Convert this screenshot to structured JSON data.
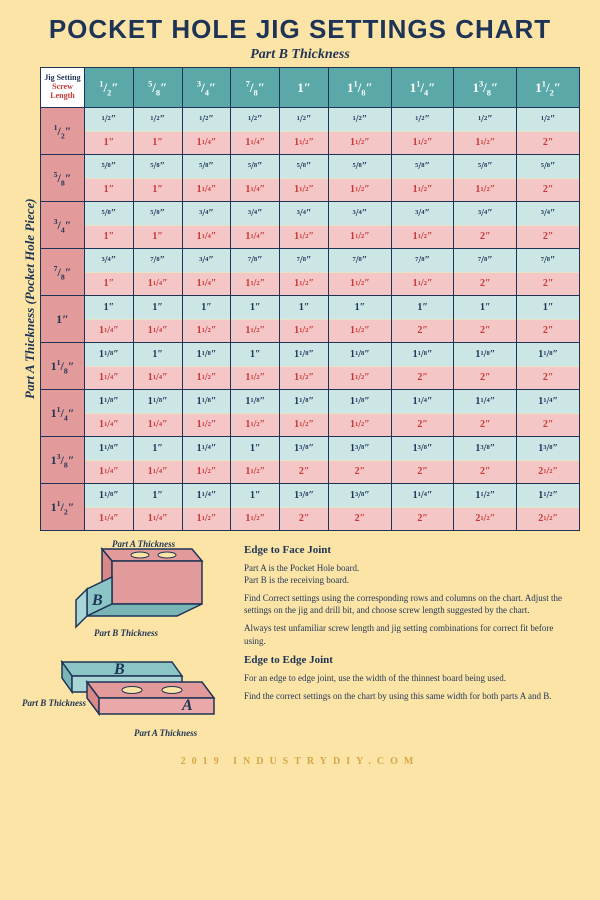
{
  "title": "POCKET HOLE JIG SETTINGS CHART",
  "subtitle": "Part B Thickness",
  "side_label": "Part A Thickness (Pocket Hole Piece)",
  "corner": {
    "jig": "Jig Setting",
    "screw": "Screw Length"
  },
  "col_headers": [
    "1/2\"",
    "5/8\"",
    "3/4\"",
    "7/8\"",
    "1\"",
    "1 1/8\"",
    "1 1/4\"",
    "1 3/8\"",
    "1 1/2\""
  ],
  "row_headers": [
    "1/2\"",
    "5/8\"",
    "3/4\"",
    "7/8\"",
    "1\"",
    "1 1/8\"",
    "1 1/4\"",
    "1 3/8\"",
    "1 1/2\""
  ],
  "cells": [
    [
      [
        "1/2\"",
        "1\""
      ],
      [
        "1/2\"",
        "1\""
      ],
      [
        "1/2\"",
        "1 1/4\""
      ],
      [
        "1/2\"",
        "1 1/4\""
      ],
      [
        "1/2\"",
        "1 1/2\""
      ],
      [
        "1/2\"",
        "1 1/2\""
      ],
      [
        "1/2\"",
        "1 1/2\""
      ],
      [
        "1/2\"",
        "1 1/2\""
      ],
      [
        "1/2\"",
        "2\""
      ]
    ],
    [
      [
        "5/8\"",
        "1\""
      ],
      [
        "5/8\"",
        "1\""
      ],
      [
        "5/8\"",
        "1 1/4\""
      ],
      [
        "5/8\"",
        "1 1/4\""
      ],
      [
        "5/8\"",
        "1 1/2\""
      ],
      [
        "5/8\"",
        "1 1/2\""
      ],
      [
        "5/8\"",
        "1 1/2\""
      ],
      [
        "5/8\"",
        "1 1/2\""
      ],
      [
        "5/8\"",
        "2\""
      ]
    ],
    [
      [
        "5/8\"",
        "1\""
      ],
      [
        "5/8\"",
        "1\""
      ],
      [
        "3/4\"",
        "1 1/4\""
      ],
      [
        "3/4\"",
        "1 1/4\""
      ],
      [
        "3/4\"",
        "1 1/2\""
      ],
      [
        "3/4\"",
        "1 1/2\""
      ],
      [
        "3/4\"",
        "1 1/2\""
      ],
      [
        "3/4\"",
        "2\""
      ],
      [
        "3/4\"",
        "2\""
      ]
    ],
    [
      [
        "3/4\"",
        "1\""
      ],
      [
        "7/8\"",
        "1 1/4\""
      ],
      [
        "3/4\"",
        "1 1/4\""
      ],
      [
        "7/8\"",
        "1 1/2\""
      ],
      [
        "7/8\"",
        "1 1/2\""
      ],
      [
        "7/8\"",
        "1 1/2\""
      ],
      [
        "7/8\"",
        "1 1/2\""
      ],
      [
        "7/8\"",
        "2\""
      ],
      [
        "7/8\"",
        "2\""
      ]
    ],
    [
      [
        "1\"",
        "1 1/4\""
      ],
      [
        "1\"",
        "1 1/4\""
      ],
      [
        "1\"",
        "1 1/2\""
      ],
      [
        "1\"",
        "1 1/2\""
      ],
      [
        "1\"",
        "1 1/2\""
      ],
      [
        "1\"",
        "1 1/2\""
      ],
      [
        "1\"",
        "2\""
      ],
      [
        "1\"",
        "2\""
      ],
      [
        "1\"",
        "2\""
      ]
    ],
    [
      [
        "1 1/8\"",
        "1 1/4\""
      ],
      [
        "1\"",
        "1 1/4\""
      ],
      [
        "1 1/8\"",
        "1 1/2\""
      ],
      [
        "1\"",
        "1 1/2\""
      ],
      [
        "1 1/8\"",
        "1 1/2\""
      ],
      [
        "1 1/8\"",
        "1 1/2\""
      ],
      [
        "1 1/8\"",
        "2\""
      ],
      [
        "1 1/8\"",
        "2\""
      ],
      [
        "1 1/8\"",
        "2\""
      ]
    ],
    [
      [
        "1 1/8\"",
        "1 1/4\""
      ],
      [
        "1 1/8\"",
        "1 1/4\""
      ],
      [
        "1 1/8\"",
        "1 1/2\""
      ],
      [
        "1 1/8\"",
        "1 1/2\""
      ],
      [
        "1 1/8\"",
        "1 1/2\""
      ],
      [
        "1 1/8\"",
        "1 1/2\""
      ],
      [
        "1 1/4\"",
        "2\""
      ],
      [
        "1 1/4\"",
        "2\""
      ],
      [
        "1 1/4\"",
        "2\""
      ]
    ],
    [
      [
        "1 1/8\"",
        "1 1/4\""
      ],
      [
        "1\"",
        "1 1/4\""
      ],
      [
        "1 1/4\"",
        "1 1/2\""
      ],
      [
        "1\"",
        "1 1/2\""
      ],
      [
        "1 3/8\"",
        "2\""
      ],
      [
        "1 3/8\"",
        "2\""
      ],
      [
        "1 3/8\"",
        "2\""
      ],
      [
        "1 3/8\"",
        "2\""
      ],
      [
        "1 3/8\"",
        "2 1/2\""
      ]
    ],
    [
      [
        "1 1/8\"",
        "1 1/4\""
      ],
      [
        "1\"",
        "1 1/4\""
      ],
      [
        "1 1/4\"",
        "1 1/2\""
      ],
      [
        "1\"",
        "1 1/2\""
      ],
      [
        "1 3/8\"",
        "2\""
      ],
      [
        "1 3/8\"",
        "2\""
      ],
      [
        "1 1/4\"",
        "2\""
      ],
      [
        "1 1/2\"",
        "2 1/2\""
      ],
      [
        "1 1/2\"",
        "2 1/2\""
      ]
    ]
  ],
  "colors": {
    "page_bg": "#fce4a6",
    "dark": "#1e3456",
    "teal_head": "#5aa8a8",
    "pink_head": "#e39a9a",
    "teal_cell": "#cce5e5",
    "pink_cell": "#f5c6c6",
    "red_text": "#c93838"
  },
  "diag1": {
    "partA": "Part A Thickness",
    "partB": "Part B Thickness",
    "A": "A",
    "B": "B"
  },
  "diag2": {
    "partA": "Part A Thickness",
    "partB": "Part B Thickness",
    "A": "A",
    "B": "B"
  },
  "instructions": {
    "h1": "Edge to Face Joint",
    "p1": "Part A is the Pocket Hole board.",
    "p2": "Part B is the receiving board.",
    "p3": "Find Correct settings using the corresponding rows and columns on the chart.  Adjust the settings on the jig and drill bit, and choose screw length suggested by the chart.",
    "p4": "Always test unfamiliar screw length and jig setting combinations for correct fit before using.",
    "h2": "Edge to Edge Joint",
    "p5": "For an edge to edge joint, use the width of the thinnest board being used.",
    "p6": "Find the correct settings on the chart by using this same width for both parts A and B."
  },
  "copyright": "2019 INDUSTRYDIY.COM"
}
